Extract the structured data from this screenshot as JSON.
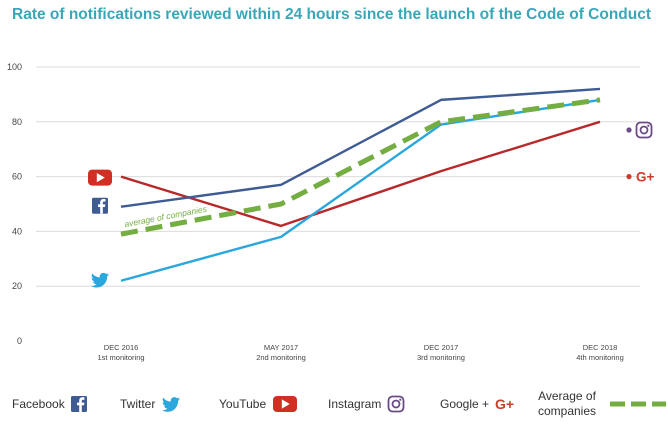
{
  "title": "Rate of notifications reviewed within 24 hours since the launch of the Code of Conduct",
  "colors": {
    "facebook": "#3e5b93",
    "twitter": "#2aa7dc",
    "youtube": "#b7292b",
    "instagram": "#6b4b86",
    "googleplus": "#cd3b2c",
    "average": "#74ad42",
    "grid": "#dcdcdc",
    "axis_text": "#444444"
  },
  "chart_data": {
    "type": "line",
    "title": "Rate of notifications reviewed within 24 hours since the launch of the Code of Conduct",
    "ylim": [
      0,
      100
    ],
    "yticks": [
      "0",
      "20",
      "40",
      "60",
      "80",
      "100"
    ],
    "grid": true,
    "categories": [
      {
        "date": "DEC 2016",
        "label": "1st monitoring"
      },
      {
        "date": "MAY 2017",
        "label": "2nd monitoring"
      },
      {
        "date": "DEC 2017",
        "label": "3rd monitoring"
      },
      {
        "date": "DEC 2018",
        "label": "4th monitoring"
      }
    ],
    "series": [
      {
        "name": "Facebook",
        "key": "facebook",
        "values": [
          49,
          57,
          88,
          92
        ]
      },
      {
        "name": "Twitter",
        "key": "twitter",
        "values": [
          22,
          38,
          79,
          88
        ]
      },
      {
        "name": "YouTube",
        "key": "youtube",
        "values": [
          60,
          42,
          62,
          80
        ]
      },
      {
        "name": "Average of companies",
        "key": "average",
        "values": [
          39,
          50,
          80,
          88
        ],
        "dashed": true
      }
    ],
    "single_points": [
      {
        "name": "Instagram",
        "key": "instagram",
        "value": 77
      },
      {
        "name": "Google +",
        "key": "googleplus",
        "value": 60
      }
    ],
    "annotation": "average of companies"
  },
  "legend": [
    {
      "key": "facebook",
      "label": "Facebook",
      "icon": "facebook-icon"
    },
    {
      "key": "twitter",
      "label": "Twitter",
      "icon": "twitter-icon"
    },
    {
      "key": "youtube",
      "label": "YouTube",
      "icon": "youtube-icon"
    },
    {
      "key": "instagram",
      "label": "Instagram",
      "icon": "instagram-icon"
    },
    {
      "key": "googleplus",
      "label": "Google +",
      "icon": "googleplus-icon"
    },
    {
      "key": "average",
      "label": "Average of companies",
      "icon": "dashed-line-icon"
    }
  ]
}
